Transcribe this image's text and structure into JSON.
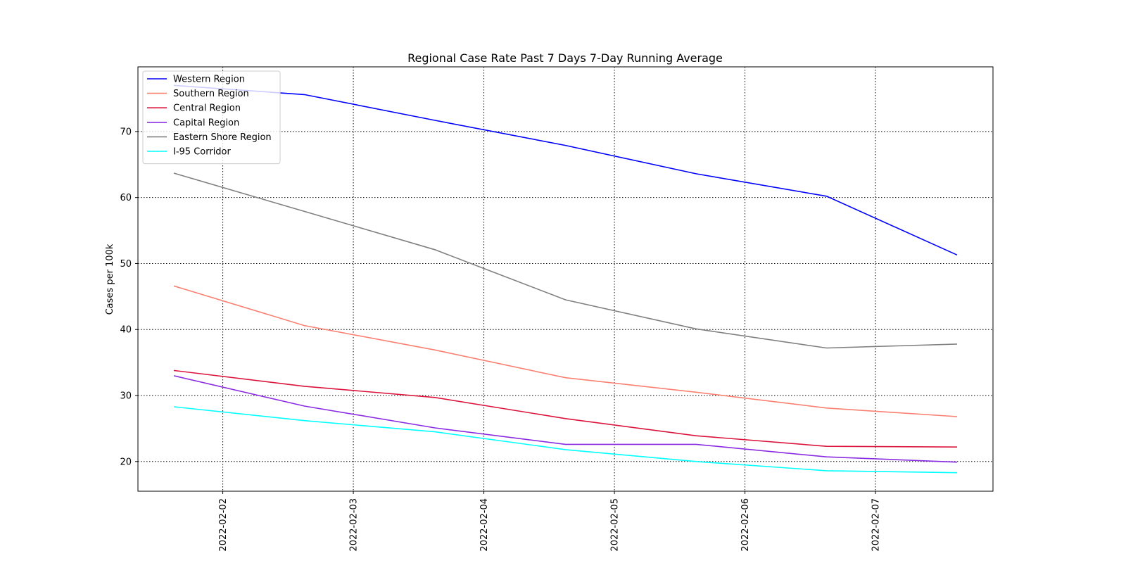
{
  "chart_data": {
    "type": "line",
    "title": "Regional Case Rate  Past 7 Days 7-Day Running Average",
    "xlabel": "",
    "ylabel": "Cases per 100k",
    "x_dates": [
      "2022-02-01T15:00",
      "2022-02-02T15:00",
      "2022-02-03T15:00",
      "2022-02-04T15:00",
      "2022-02-05T15:00",
      "2022-02-06T15:00",
      "2022-02-07T15:00"
    ],
    "x_ticks": [
      "2022-02-02",
      "2022-02-03",
      "2022-02-04",
      "2022-02-05",
      "2022-02-06",
      "2022-02-07"
    ],
    "xlim": [
      "2022-02-01T08:24",
      "2022-02-07T21:36"
    ],
    "y_ticks": [
      20,
      30,
      40,
      50,
      60,
      70
    ],
    "ylim": [
      15.5,
      79.8
    ],
    "grid": true,
    "legend_position": "top-left",
    "series": [
      {
        "name": "Western Region",
        "color": "#0000ff",
        "values": [
          77.0,
          75.6,
          71.7,
          67.9,
          63.6,
          60.2,
          51.3
        ]
      },
      {
        "name": "Southern Region",
        "color": "#fa8072",
        "values": [
          46.6,
          40.6,
          36.9,
          32.7,
          30.5,
          28.1,
          26.8
        ]
      },
      {
        "name": "Central Region",
        "color": "#dc143c",
        "values": [
          33.8,
          31.4,
          29.7,
          26.5,
          23.9,
          22.3,
          22.2
        ]
      },
      {
        "name": "Capital Region",
        "color": "#8a2be2",
        "values": [
          33.0,
          28.4,
          25.1,
          22.6,
          22.6,
          20.7,
          19.9
        ]
      },
      {
        "name": "Eastern Shore Region",
        "color": "#808080",
        "values": [
          63.7,
          57.9,
          52.1,
          44.5,
          40.1,
          37.2,
          37.8
        ]
      },
      {
        "name": "I-95 Corridor",
        "color": "#00ffff",
        "values": [
          28.3,
          26.2,
          24.5,
          21.8,
          20.0,
          18.6,
          18.3
        ]
      }
    ]
  }
}
